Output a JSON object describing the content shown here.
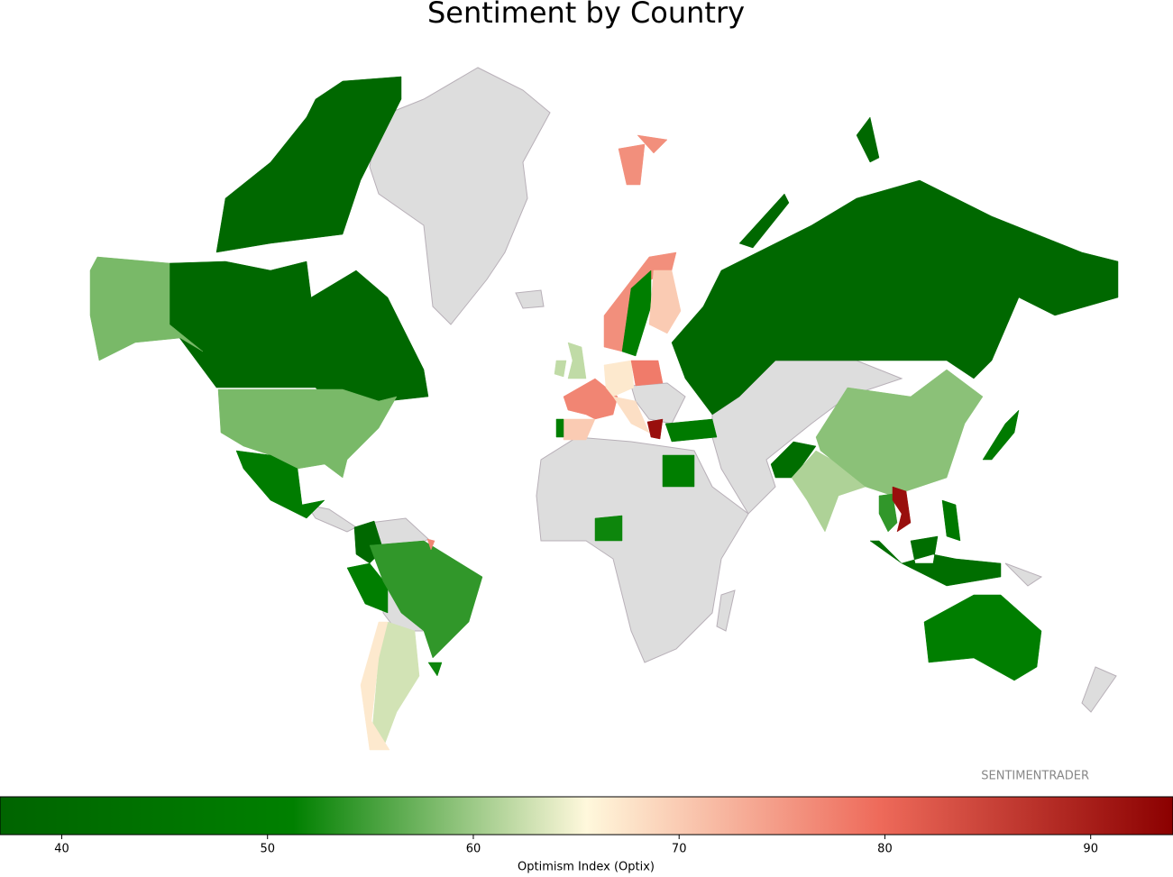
{
  "chart_data": {
    "type": "choropleth",
    "title": "Sentiment by Country",
    "values": [
      39,
      58,
      49,
      39,
      50,
      54,
      63,
      67,
      52,
      62,
      62,
      76,
      50,
      70,
      77,
      70,
      50,
      67,
      68,
      78,
      92,
      48,
      39,
      50,
      52,
      42,
      61,
      59,
      48,
      54,
      92,
      42,
      47,
      50
    ],
    "colormap": [
      "#006400",
      "#008000",
      "#fff8dc",
      "#ee6a5a",
      "#8b0000"
    ],
    "xlim": [
      37.0,
      94.0
    ],
    "xticks": [
      40,
      50,
      60,
      70,
      80,
      90
    ],
    "xlabel": "Optimism Index (Optix)",
    "annotation": "SENTIMENTRADER"
  }
}
